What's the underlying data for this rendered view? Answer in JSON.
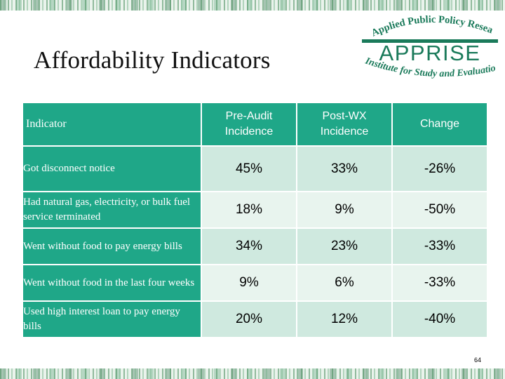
{
  "slide": {
    "title": "Affordability Indicators",
    "page_number": "64"
  },
  "logo": {
    "top_arc": "Applied Public Policy Research",
    "name": "APPRISE",
    "bottom_arc": "Institute for Study and Evaluation",
    "colors": {
      "text": "#1a7a5a",
      "bar": "#1a7a5a"
    }
  },
  "table": {
    "headers": [
      "Indicator",
      "Pre-Audit Incidence",
      "Post-WX Incidence",
      "Change"
    ],
    "header_lines": [
      [
        "Indicator"
      ],
      [
        "Pre-Audit",
        "Incidence"
      ],
      [
        "Post-WX",
        "Incidence"
      ],
      [
        "Change"
      ]
    ],
    "rows": [
      {
        "label": "Got disconnect notice",
        "pre": "45%",
        "post": "33%",
        "change": "-26%"
      },
      {
        "label": "Had natural gas, electricity, or bulk fuel service terminated",
        "pre": "18%",
        "post": "9%",
        "change": "-50%"
      },
      {
        "label": "Went without food to pay energy bills",
        "pre": "34%",
        "post": "23%",
        "change": "-33%"
      },
      {
        "label": "Went without food in the last four weeks",
        "pre": "9%",
        "post": "6%",
        "change": "-33%"
      },
      {
        "label": "Used high interest loan to pay energy bills",
        "pre": "20%",
        "post": "12%",
        "change": "-40%"
      }
    ],
    "colors": {
      "header_bg": "#1fa788",
      "row_dark": "#cfe9df",
      "row_light": "#e8f4ee"
    }
  }
}
